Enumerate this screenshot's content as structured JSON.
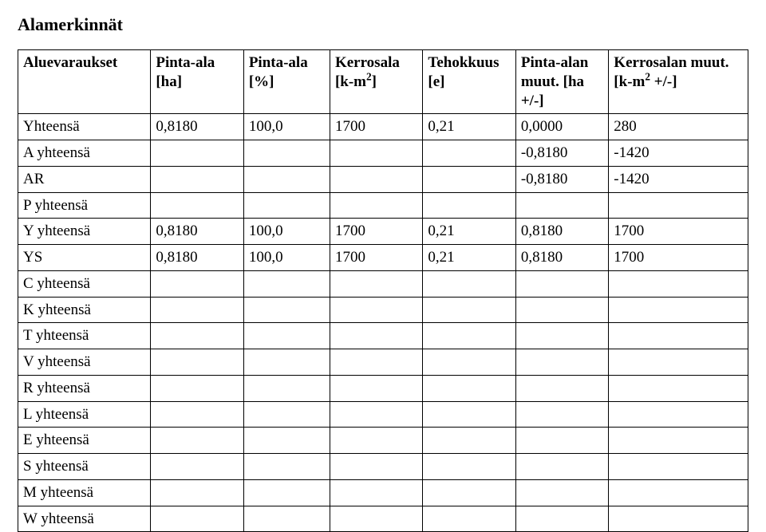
{
  "title": "Alamerkinnät",
  "columns": [
    {
      "label": "Aluevaraukset"
    },
    {
      "line1": "Pinta-ala",
      "line2": "[ha]"
    },
    {
      "line1": "Pinta-ala",
      "line2": "[%]"
    },
    {
      "line1": "Kerrosala",
      "line2": "[k-m²]"
    },
    {
      "line1": "Tehokkuus",
      "line2": "[e]"
    },
    {
      "line1": "Pinta-alan",
      "line2": "muut. [ha +/-]"
    },
    {
      "line1": "Kerrosalan muut.",
      "line2": "[k-m² +/-]"
    }
  ],
  "rows": [
    {
      "label": "Yhteensä",
      "v": [
        "0,8180",
        "100,0",
        "1700",
        "0,21",
        "0,0000",
        "280"
      ]
    },
    {
      "label": "A yhteensä",
      "v": [
        "",
        "",
        "",
        "",
        "-0,8180",
        "-1420"
      ]
    },
    {
      "label": "AR",
      "v": [
        "",
        "",
        "",
        "",
        "-0,8180",
        "-1420"
      ]
    },
    {
      "label": "P yhteensä",
      "v": [
        "",
        "",
        "",
        "",
        "",
        ""
      ]
    },
    {
      "label": "Y yhteensä",
      "v": [
        "0,8180",
        "100,0",
        "1700",
        "0,21",
        "0,8180",
        "1700"
      ]
    },
    {
      "label": "YS",
      "v": [
        "0,8180",
        "100,0",
        "1700",
        "0,21",
        "0,8180",
        "1700"
      ]
    },
    {
      "label": "C yhteensä",
      "v": [
        "",
        "",
        "",
        "",
        "",
        ""
      ]
    },
    {
      "label": "K yhteensä",
      "v": [
        "",
        "",
        "",
        "",
        "",
        ""
      ]
    },
    {
      "label": "T yhteensä",
      "v": [
        "",
        "",
        "",
        "",
        "",
        ""
      ]
    },
    {
      "label": "V yhteensä",
      "v": [
        "",
        "",
        "",
        "",
        "",
        ""
      ]
    },
    {
      "label": "R yhteensä",
      "v": [
        "",
        "",
        "",
        "",
        "",
        ""
      ]
    },
    {
      "label": "L yhteensä",
      "v": [
        "",
        "",
        "",
        "",
        "",
        ""
      ]
    },
    {
      "label": "E yhteensä",
      "v": [
        "",
        "",
        "",
        "",
        "",
        ""
      ]
    },
    {
      "label": "S yhteensä",
      "v": [
        "",
        "",
        "",
        "",
        "",
        ""
      ]
    },
    {
      "label": "M yhteensä",
      "v": [
        "",
        "",
        "",
        "",
        "",
        ""
      ]
    },
    {
      "label": "W yhteensä",
      "v": [
        "",
        "",
        "",
        "",
        "",
        ""
      ]
    }
  ],
  "style": {
    "font_family": "Times New Roman",
    "title_fontsize_pt": 16,
    "cell_fontsize_pt": 14,
    "border_color": "#000000",
    "background_color": "#ffffff",
    "text_color": "#000000",
    "col_widths_pct": [
      20,
      14,
      13,
      14,
      14,
      14,
      21
    ]
  }
}
